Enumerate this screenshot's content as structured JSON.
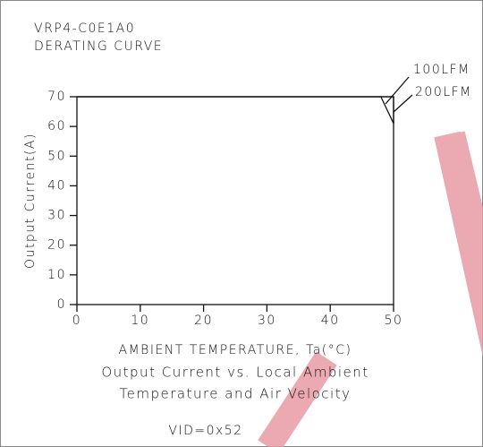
{
  "chart_data": {
    "type": "line",
    "title": "VRP4-C0E1A0",
    "subtitle": "DERATING CURVE",
    "xlabel": "AMBIENT TEMPERATURE, Ta(°C)",
    "ylabel": "Output Current(A)",
    "caption": [
      "Output Current vs. Local Ambient",
      "Temperature and Air Velocity"
    ],
    "note": "VID=0x52",
    "xlim": [
      0,
      50
    ],
    "ylim": [
      0,
      70
    ],
    "xticks": [
      0,
      10,
      20,
      30,
      40,
      50
    ],
    "yticks": [
      0,
      10,
      20,
      30,
      40,
      50,
      60,
      70
    ],
    "series": [
      {
        "name": "100LFM",
        "color": "#000000",
        "x": [
          0,
          48,
          50
        ],
        "values": [
          70,
          70,
          61
        ]
      },
      {
        "name": "200LFM",
        "color": "#000000",
        "x": [
          0,
          50,
          50
        ],
        "values": [
          70,
          70,
          61
        ]
      }
    ]
  }
}
